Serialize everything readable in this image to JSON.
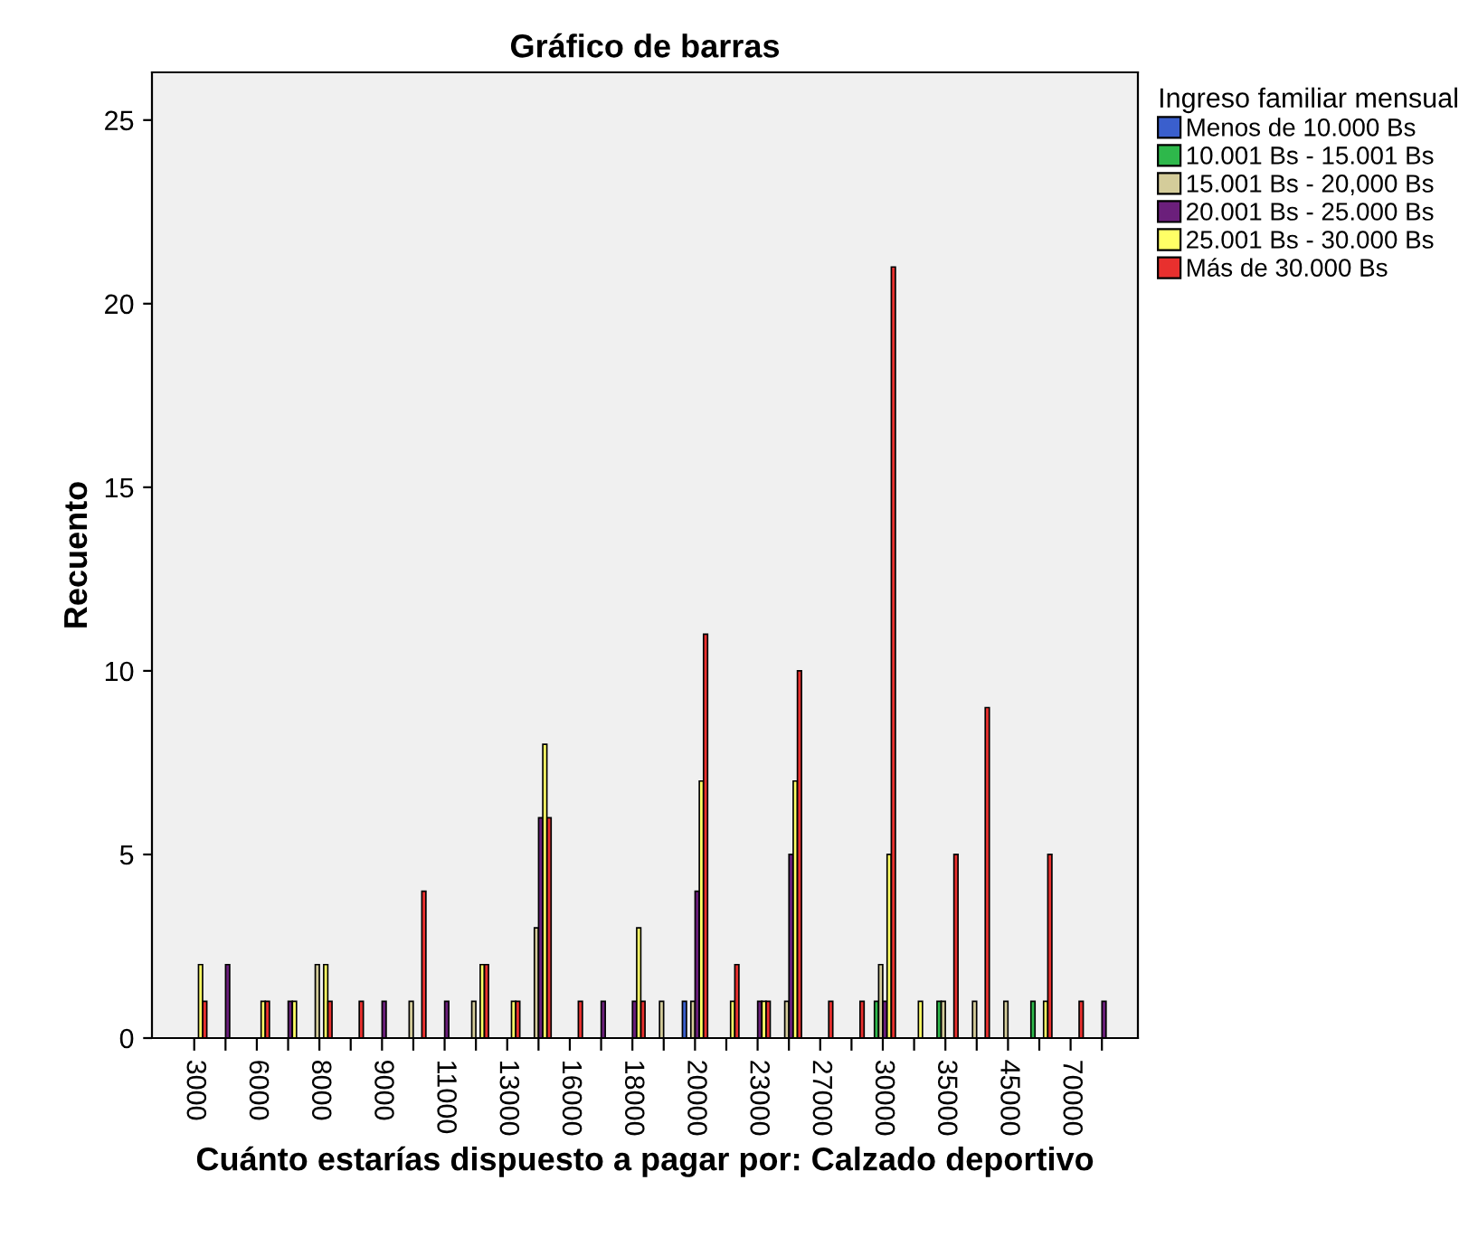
{
  "chart_data": {
    "type": "bar",
    "title": "Gráfico de barras",
    "xlabel": "Cuánto estarías dispuesto a pagar por: Calzado deportivo",
    "ylabel": "Recuento",
    "legend_title": "Ingreso familiar mensual",
    "legend": "top right",
    "grid": false,
    "categories": [
      "3000",
      null,
      "6000",
      null,
      "8000",
      null,
      "9000",
      null,
      "11000",
      null,
      "13000",
      null,
      "16000",
      null,
      "18000",
      null,
      "20000",
      null,
      "23000",
      null,
      "27000",
      null,
      "30000",
      null,
      "35000",
      null,
      "45000",
      null,
      "70000",
      null
    ],
    "ylim": [
      0,
      26.3
    ],
    "yticks": [
      0,
      5,
      10,
      15,
      20,
      25
    ],
    "series": [
      {
        "name": "Menos de 10.000 Bs",
        "color": "#3a5fcd",
        "values": [
          null,
          null,
          null,
          null,
          null,
          null,
          null,
          null,
          null,
          null,
          null,
          null,
          null,
          null,
          null,
          null,
          1,
          null,
          null,
          null,
          null,
          null,
          null,
          null,
          null,
          null,
          null,
          null,
          null,
          null
        ]
      },
      {
        "name": "10.001 Bs - 15.001 Bs",
        "color": "#2eb84b",
        "values": [
          null,
          null,
          null,
          null,
          null,
          null,
          null,
          null,
          null,
          null,
          null,
          null,
          null,
          null,
          null,
          null,
          null,
          null,
          null,
          null,
          null,
          null,
          1,
          null,
          1,
          null,
          null,
          1,
          null,
          null
        ]
      },
      {
        "name": "15.001 Bs - 20,000 Bs",
        "color": "#d4cc9a",
        "values": [
          null,
          null,
          null,
          null,
          2,
          null,
          null,
          1,
          null,
          1,
          null,
          3,
          null,
          null,
          null,
          1,
          1,
          null,
          null,
          1,
          null,
          null,
          2,
          null,
          1,
          1,
          1,
          null,
          null,
          null
        ]
      },
      {
        "name": "20.001 Bs - 25.000 Bs",
        "color": "#6b1f7b",
        "values": [
          null,
          2,
          null,
          1,
          null,
          null,
          1,
          null,
          1,
          null,
          null,
          6,
          null,
          1,
          1,
          null,
          4,
          null,
          1,
          5,
          null,
          null,
          1,
          null,
          null,
          null,
          null,
          null,
          null,
          1
        ]
      },
      {
        "name": "25.001 Bs - 30.000 Bs",
        "color": "#ffff66",
        "values": [
          2,
          null,
          1,
          1,
          2,
          null,
          null,
          null,
          null,
          2,
          1,
          8,
          null,
          null,
          3,
          null,
          7,
          1,
          1,
          7,
          null,
          null,
          5,
          1,
          null,
          null,
          null,
          1,
          null,
          null
        ]
      },
      {
        "name": "Más de 30.000 Bs",
        "color": "#e8302e",
        "values": [
          1,
          null,
          1,
          null,
          1,
          1,
          null,
          4,
          null,
          2,
          1,
          6,
          1,
          null,
          1,
          null,
          11,
          2,
          1,
          10,
          1,
          1,
          21,
          null,
          5,
          9,
          null,
          5,
          1,
          null
        ]
      }
    ]
  }
}
